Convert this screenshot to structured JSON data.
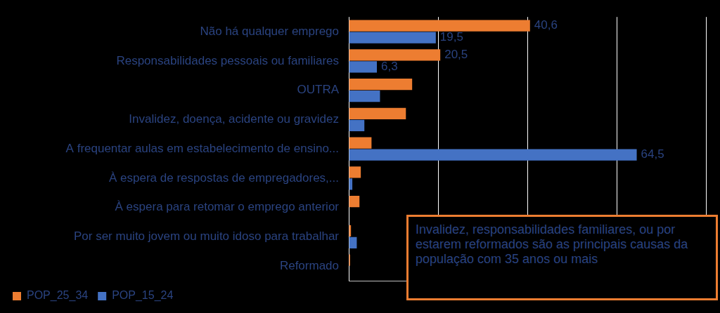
{
  "chart_data": {
    "type": "bar",
    "orientation": "horizontal",
    "categories": [
      "Não há qualquer emprego",
      "Responsabilidades pessoais ou familiares",
      "OUTRA",
      "Invalidez, doença, acidente ou gravidez",
      "A frequentar aulas em estabelecimento de ensino...",
      "À espera de respostas de empregadores,...",
      "À espera para retomar o emprego anterior",
      "Por ser muito jovem ou muito idoso para trabalhar",
      "Reformado"
    ],
    "series": [
      {
        "name": "POP_25_34",
        "color": "#ED7D31",
        "values": [
          40.6,
          20.5,
          14.2,
          12.8,
          5.1,
          2.7,
          2.4,
          0.5,
          0.3
        ],
        "value_labels": [
          "40,6",
          "20,5",
          null,
          null,
          null,
          null,
          null,
          null,
          null
        ]
      },
      {
        "name": "POP_15_24",
        "color": "#4472C4",
        "values": [
          19.5,
          6.3,
          7.0,
          3.5,
          64.5,
          0.8,
          0,
          1.8,
          0
        ],
        "value_labels": [
          "19,5",
          "6,3",
          null,
          null,
          "64,5",
          null,
          null,
          null,
          null
        ]
      }
    ],
    "xlim": [
      0,
      80
    ],
    "xticks": [
      0,
      20,
      40,
      60,
      80
    ],
    "grid": true,
    "data_labels": true,
    "tick_labels": "y",
    "legend": "bottom-left",
    "annotation": "Invalidez, responsabilidades familiares, ou por estarem reformados são as principais causas da população com 35 anos ou mais"
  }
}
